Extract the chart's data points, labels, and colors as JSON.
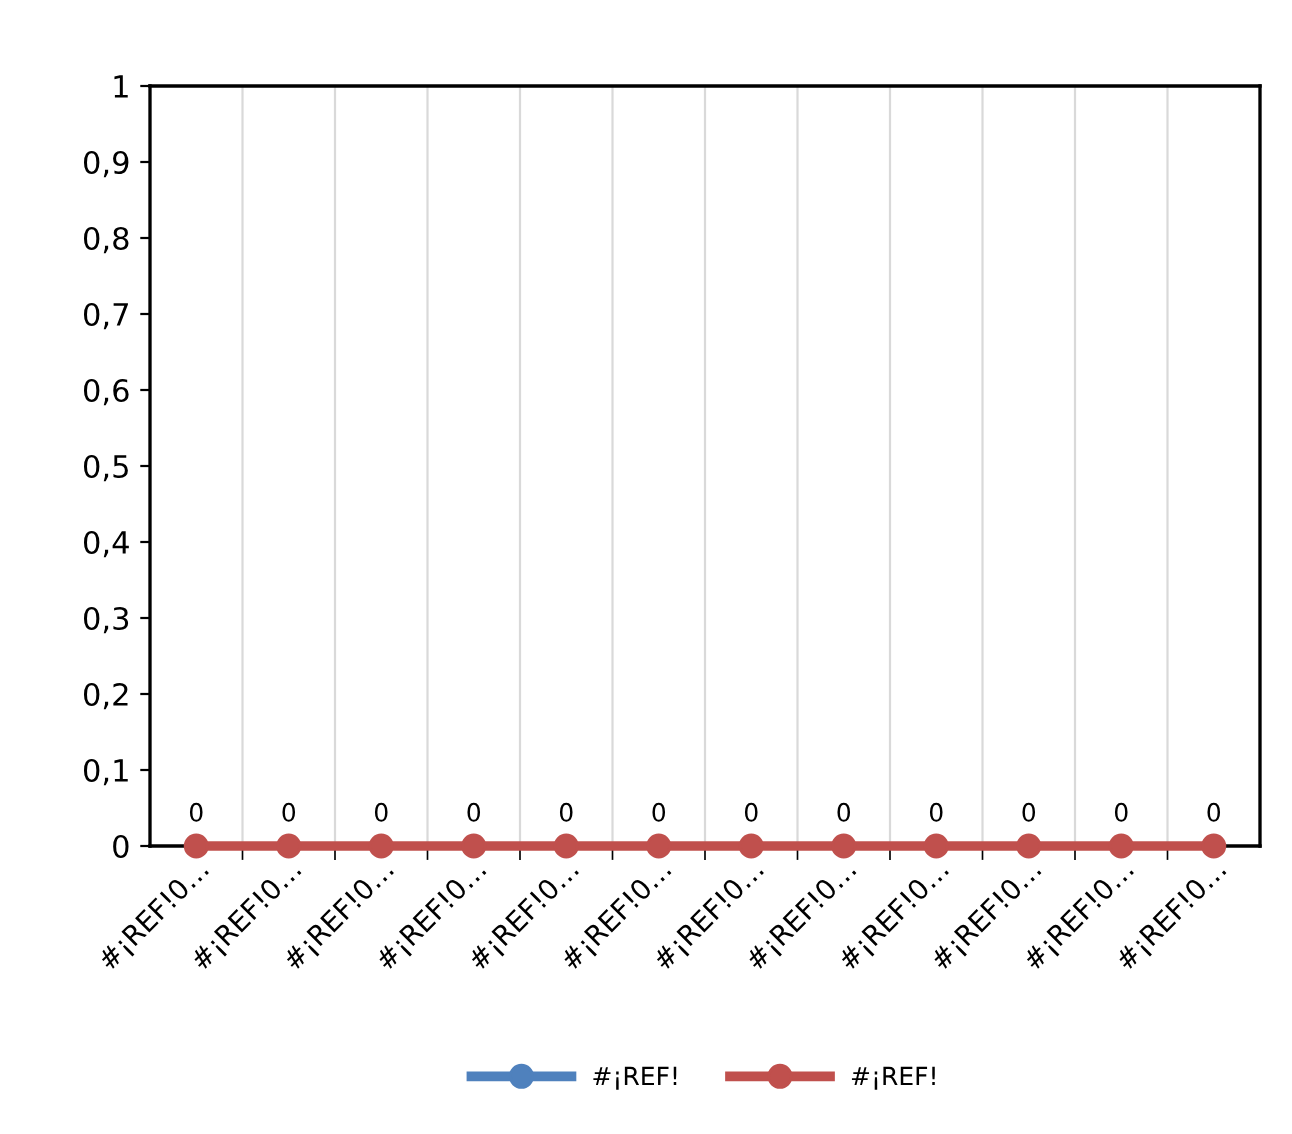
{
  "chart_data": {
    "type": "line",
    "categories": [
      "#¡REF!0…",
      "#¡REF!0…",
      "#¡REF!0…",
      "#¡REF!0…",
      "#¡REF!0…",
      "#¡REF!0…",
      "#¡REF!0…",
      "#¡REF!0…",
      "#¡REF!0…",
      "#¡REF!0…",
      "#¡REF!0…",
      "#¡REF!0…"
    ],
    "series": [
      {
        "name": "#¡REF!",
        "color": "#4f81bd",
        "values": [
          null,
          null,
          null,
          null,
          null,
          null,
          null,
          null,
          null,
          null,
          null,
          null
        ]
      },
      {
        "name": "#¡REF!",
        "color": "#c0504d",
        "values": [
          0,
          0,
          0,
          0,
          0,
          0,
          0,
          0,
          0,
          0,
          0,
          0
        ]
      }
    ],
    "ylim": [
      0,
      1
    ],
    "yticks": [
      0,
      {
        "value": 0.1,
        "label": "0,1"
      },
      {
        "value": 0.2,
        "label": "0,2"
      },
      {
        "value": 0.3,
        "label": "0,3"
      },
      {
        "value": 0.4,
        "label": "0,4"
      },
      {
        "value": 0.5,
        "label": "0,5"
      },
      {
        "value": 0.6,
        "label": "0,6"
      },
      {
        "value": 0.7,
        "label": "0,7"
      },
      {
        "value": 0.8,
        "label": "0,8"
      },
      {
        "value": 0.9,
        "label": "0,9"
      },
      1
    ],
    "grid": "x",
    "legend": "bottom",
    "marker": "circle",
    "line_style": "solid",
    "data_labels": true
  }
}
